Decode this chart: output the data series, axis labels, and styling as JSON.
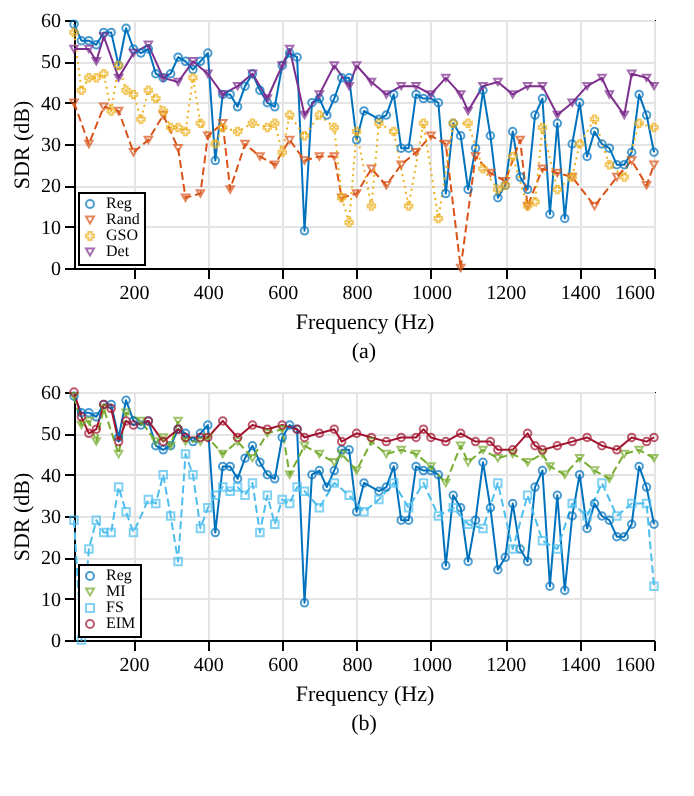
{
  "chart_data": [
    {
      "type": "line",
      "xlabel": "Frequency (Hz)",
      "ylabel": "SDR (dB)",
      "annotations": [
        "(a)"
      ],
      "xlim": [
        40,
        1600
      ],
      "ylim": [
        0,
        60
      ],
      "xticks": [
        200,
        400,
        600,
        800,
        1000,
        1200,
        1400,
        1600
      ],
      "yticks": [
        0,
        10,
        20,
        30,
        40,
        50,
        60
      ],
      "grid": true,
      "legend": "bottom left",
      "series": [
        {
          "name": "Reg",
          "color": "#0072bd",
          "marker": "circle",
          "line_style": "solid",
          "x": [
            40,
            60,
            80,
            100,
            120,
            140,
            160,
            180,
            200,
            220,
            240,
            260,
            280,
            300,
            320,
            340,
            360,
            380,
            400,
            420,
            440,
            460,
            480,
            500,
            520,
            540,
            560,
            580,
            600,
            620,
            640,
            660,
            680,
            700,
            720,
            740,
            760,
            780,
            800,
            820,
            860,
            880,
            900,
            920,
            940,
            960,
            980,
            1000,
            1020,
            1040,
            1060,
            1080,
            1100,
            1120,
            1140,
            1160,
            1180,
            1200,
            1220,
            1240,
            1260,
            1280,
            1300,
            1320,
            1340,
            1360,
            1380,
            1400,
            1420,
            1440,
            1460,
            1480,
            1500,
            1520,
            1540,
            1560,
            1580,
            1600
          ],
          "values": [
            59,
            55,
            55,
            54,
            57,
            57,
            49,
            58,
            53,
            52,
            53,
            47,
            46,
            47,
            51,
            50,
            48,
            50,
            52,
            26,
            42,
            42,
            39,
            44,
            47,
            43,
            40,
            39,
            49,
            52,
            51,
            9,
            40,
            41,
            37,
            41,
            46,
            46,
            31,
            38,
            36,
            37,
            42,
            29,
            29,
            42,
            41,
            41,
            40,
            18,
            35,
            32,
            19,
            29,
            43,
            32,
            17,
            20,
            33,
            22,
            19,
            37,
            41,
            13,
            35,
            12,
            30,
            40,
            27,
            33,
            30,
            29,
            25,
            25,
            28,
            42,
            37,
            28
          ]
        },
        {
          "name": "Rand",
          "color": "#d95319",
          "marker": "triangle",
          "line_style": "dashed",
          "x": [
            40,
            80,
            120,
            160,
            200,
            240,
            280,
            320,
            340,
            380,
            400,
            440,
            460,
            500,
            540,
            580,
            620,
            660,
            700,
            740,
            760,
            800,
            840,
            880,
            920,
            960,
            1000,
            1040,
            1080,
            1120,
            1160,
            1200,
            1240,
            1260,
            1300,
            1340,
            1380,
            1440,
            1500,
            1540,
            1580,
            1600
          ],
          "values": [
            40,
            30,
            39,
            38,
            28,
            31,
            37,
            29,
            17,
            18,
            32,
            35,
            19,
            30,
            27,
            25,
            31,
            26,
            27,
            27,
            17,
            18,
            24,
            20,
            25,
            28,
            32,
            30,
            0,
            27,
            23,
            21,
            31,
            15,
            24,
            23,
            22,
            15,
            22,
            26,
            20,
            25
          ]
        },
        {
          "name": "GSO",
          "color": "#edb120",
          "marker": "cross",
          "line_style": "dotted",
          "x": [
            40,
            60,
            80,
            100,
            120,
            140,
            160,
            180,
            200,
            220,
            240,
            260,
            280,
            300,
            320,
            340,
            360,
            380,
            420,
            440,
            480,
            520,
            560,
            580,
            600,
            620,
            660,
            700,
            740,
            760,
            780,
            800,
            840,
            860,
            900,
            940,
            980,
            1020,
            1060,
            1100,
            1140,
            1180,
            1200,
            1220,
            1260,
            1280,
            1300,
            1340,
            1380,
            1400,
            1440,
            1480,
            1520,
            1560,
            1600
          ],
          "values": [
            57,
            43,
            46,
            46,
            47,
            38,
            49,
            43,
            42,
            36,
            43,
            41,
            38,
            34,
            34,
            33,
            46,
            35,
            30,
            34,
            33,
            35,
            34,
            35,
            28,
            37,
            32,
            37,
            34,
            17,
            11,
            33,
            15,
            35,
            33,
            15,
            35,
            12,
            35,
            35,
            24,
            19,
            20,
            27,
            15,
            16,
            34,
            19,
            22,
            30,
            36,
            25,
            22,
            35,
            34
          ]
        },
        {
          "name": "Det",
          "color": "#7e2f8e",
          "marker": "triangle",
          "line_style": "solid",
          "x": [
            40,
            80,
            100,
            120,
            160,
            200,
            240,
            280,
            320,
            360,
            400,
            440,
            480,
            520,
            560,
            600,
            620,
            660,
            700,
            740,
            780,
            800,
            840,
            880,
            920,
            960,
            1000,
            1040,
            1080,
            1100,
            1140,
            1180,
            1220,
            1260,
            1300,
            1340,
            1380,
            1420,
            1460,
            1480,
            1520,
            1540,
            1580,
            1600
          ],
          "values": [
            53,
            53,
            50,
            56,
            46,
            52,
            54,
            46,
            45,
            50,
            47,
            42,
            44,
            47,
            41,
            49,
            53,
            37,
            42,
            49,
            44,
            49,
            45,
            42,
            44,
            44,
            42,
            46,
            42,
            38,
            44,
            45,
            42,
            44,
            44,
            37,
            40,
            44,
            46,
            42,
            37,
            47,
            46,
            44
          ]
        }
      ]
    },
    {
      "type": "line",
      "xlabel": "Frequency (Hz)",
      "ylabel": "SDR (dB)",
      "annotations": [
        "(b)"
      ],
      "xlim": [
        40,
        1600
      ],
      "ylim": [
        0,
        60
      ],
      "xticks": [
        200,
        400,
        600,
        800,
        1000,
        1200,
        1400,
        1600
      ],
      "yticks": [
        0,
        10,
        20,
        30,
        40,
        50,
        60
      ],
      "grid": true,
      "legend": "bottom left",
      "series": [
        {
          "name": "Reg",
          "color": "#0072bd",
          "marker": "circle",
          "line_style": "solid",
          "x": [
            40,
            60,
            80,
            100,
            120,
            140,
            160,
            180,
            200,
            220,
            240,
            260,
            280,
            300,
            320,
            340,
            360,
            380,
            400,
            420,
            440,
            460,
            480,
            500,
            520,
            540,
            560,
            580,
            600,
            620,
            640,
            660,
            680,
            700,
            720,
            740,
            760,
            780,
            800,
            820,
            860,
            880,
            900,
            920,
            940,
            960,
            980,
            1000,
            1020,
            1040,
            1060,
            1080,
            1100,
            1120,
            1140,
            1160,
            1180,
            1200,
            1220,
            1240,
            1260,
            1280,
            1300,
            1320,
            1340,
            1360,
            1380,
            1400,
            1420,
            1440,
            1460,
            1480,
            1500,
            1520,
            1540,
            1560,
            1580,
            1600
          ],
          "values": [
            59,
            55,
            55,
            54,
            57,
            57,
            49,
            58,
            53,
            52,
            53,
            47,
            46,
            47,
            51,
            50,
            48,
            50,
            52,
            26,
            42,
            42,
            39,
            44,
            47,
            43,
            40,
            39,
            49,
            52,
            51,
            9,
            40,
            41,
            37,
            41,
            46,
            46,
            31,
            38,
            36,
            37,
            42,
            29,
            29,
            42,
            41,
            41,
            40,
            18,
            35,
            32,
            19,
            29,
            43,
            32,
            17,
            20,
            33,
            22,
            19,
            37,
            41,
            13,
            35,
            12,
            30,
            40,
            27,
            33,
            30,
            29,
            25,
            25,
            28,
            42,
            37,
            28
          ]
        },
        {
          "name": "MI",
          "color": "#77ac30",
          "marker": "triangle",
          "line_style": "dashed",
          "x": [
            40,
            60,
            80,
            100,
            120,
            160,
            180,
            220,
            260,
            280,
            300,
            320,
            340,
            380,
            400,
            440,
            480,
            520,
            560,
            600,
            620,
            660,
            700,
            740,
            760,
            800,
            840,
            880,
            920,
            960,
            1000,
            1040,
            1080,
            1100,
            1140,
            1180,
            1220,
            1260,
            1300,
            1320,
            1360,
            1400,
            1440,
            1480,
            1520,
            1560,
            1600
          ],
          "values": [
            59,
            52,
            53,
            48,
            56,
            45,
            55,
            53,
            48,
            49,
            47,
            53,
            48,
            48,
            49,
            45,
            48,
            44,
            50,
            51,
            40,
            47,
            45,
            43,
            45,
            41,
            48,
            45,
            46,
            45,
            42,
            38,
            47,
            43,
            46,
            44,
            45,
            43,
            45,
            42,
            40,
            44,
            41,
            39,
            45,
            46,
            44
          ]
        },
        {
          "name": "FS",
          "color": "#4dbeee",
          "marker": "square",
          "line_style": "dashed",
          "x": [
            40,
            60,
            80,
            100,
            120,
            140,
            160,
            180,
            200,
            240,
            260,
            280,
            300,
            320,
            340,
            360,
            380,
            400,
            420,
            440,
            460,
            480,
            500,
            520,
            540,
            560,
            580,
            600,
            620,
            640,
            660,
            700,
            740,
            780,
            820,
            860,
            900,
            940,
            980,
            1020,
            1060,
            1100,
            1140,
            1180,
            1220,
            1260,
            1300,
            1340,
            1380,
            1420,
            1460,
            1500,
            1540,
            1580,
            1600
          ],
          "values": [
            29,
            0,
            22,
            29,
            26,
            26,
            37,
            31,
            26,
            34,
            33,
            40,
            30,
            19,
            45,
            40,
            27,
            32,
            35,
            37,
            36,
            37,
            35,
            38,
            26,
            35,
            28,
            34,
            33,
            37,
            36,
            32,
            38,
            35,
            31,
            34,
            38,
            32,
            38,
            30,
            32,
            28,
            27,
            38,
            22,
            35,
            24,
            22,
            33,
            30,
            38,
            30,
            33,
            33,
            13
          ]
        },
        {
          "name": "EIM",
          "color": "#a2142f",
          "marker": "circle",
          "line_style": "solid",
          "x": [
            40,
            60,
            80,
            100,
            120,
            140,
            160,
            180,
            200,
            240,
            280,
            320,
            340,
            380,
            400,
            440,
            480,
            520,
            560,
            600,
            640,
            660,
            700,
            740,
            760,
            800,
            840,
            880,
            920,
            960,
            980,
            1000,
            1040,
            1080,
            1120,
            1160,
            1180,
            1220,
            1260,
            1280,
            1300,
            1340,
            1380,
            1420,
            1460,
            1500,
            1540,
            1580,
            1600
          ],
          "values": [
            60,
            54,
            50,
            51,
            57,
            56,
            48,
            53,
            52,
            53,
            48,
            51,
            49,
            49,
            49,
            53,
            49,
            52,
            51,
            52,
            51,
            49,
            50,
            51,
            48,
            50,
            49,
            48,
            49,
            49,
            51,
            49,
            48,
            50,
            48,
            48,
            46,
            46,
            50,
            47,
            46,
            47,
            48,
            49,
            47,
            46,
            49,
            48,
            49
          ]
        }
      ]
    }
  ]
}
